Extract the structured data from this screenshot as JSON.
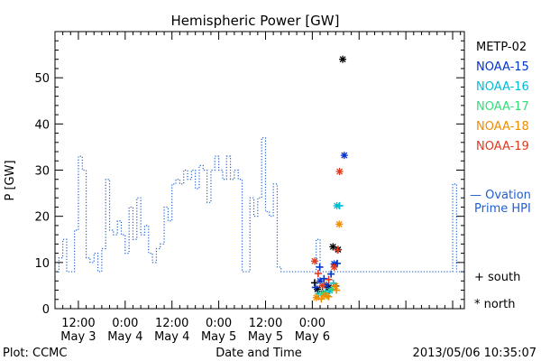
{
  "chart_data": {
    "type": "line",
    "title": "Hemispheric Power [GW]",
    "ylabel": "P [GW]",
    "xlabel": "Date and Time",
    "ylim": [
      0,
      60
    ],
    "xlim_hours": [
      6,
      111
    ],
    "y_ticks": [
      0,
      10,
      20,
      30,
      40,
      50
    ],
    "x_ticks": [
      {
        "h": 12,
        "label1": "12:00",
        "label2": "May 3"
      },
      {
        "h": 24,
        "label1": "0:00",
        "label2": "May 4"
      },
      {
        "h": 36,
        "label1": "12:00",
        "label2": "May 4"
      },
      {
        "h": 48,
        "label1": "0:00",
        "label2": "May 5"
      },
      {
        "h": 60,
        "label1": "12:00",
        "label2": "May 5"
      },
      {
        "h": 72,
        "label1": "0:00",
        "label2": "May 6"
      }
    ],
    "footer_left": "Plot: CCMC",
    "footer_right": "2013/05/06 10:35:07",
    "ovation": {
      "name": "Ovation Prime HPI",
      "label_line1": "— Ovation",
      "label_line2": "Prime HPI",
      "color": "#1f5fcf",
      "steps": [
        [
          6,
          8
        ],
        [
          7,
          11
        ],
        [
          8,
          15
        ],
        [
          9,
          8
        ],
        [
          11,
          17
        ],
        [
          12,
          33
        ],
        [
          13,
          30
        ],
        [
          14,
          11
        ],
        [
          15,
          10
        ],
        [
          16,
          12
        ],
        [
          17,
          8
        ],
        [
          18,
          13
        ],
        [
          19,
          28
        ],
        [
          20,
          17
        ],
        [
          21,
          16
        ],
        [
          22,
          19
        ],
        [
          23,
          16
        ],
        [
          24,
          12
        ],
        [
          25,
          22
        ],
        [
          26,
          15
        ],
        [
          27,
          24
        ],
        [
          28,
          16
        ],
        [
          29,
          18
        ],
        [
          30,
          12
        ],
        [
          31,
          10
        ],
        [
          32,
          13
        ],
        [
          33,
          14
        ],
        [
          34,
          22
        ],
        [
          35,
          19
        ],
        [
          36,
          27
        ],
        [
          37,
          28
        ],
        [
          38,
          27
        ],
        [
          39,
          30
        ],
        [
          40,
          28
        ],
        [
          41,
          30
        ],
        [
          42,
          26
        ],
        [
          43,
          31
        ],
        [
          44,
          30
        ],
        [
          45,
          23
        ],
        [
          46,
          30
        ],
        [
          47,
          33
        ],
        [
          48,
          30
        ],
        [
          49,
          28
        ],
        [
          50,
          33
        ],
        [
          51,
          28
        ],
        [
          52,
          30
        ],
        [
          53,
          28
        ],
        [
          54,
          8
        ],
        [
          56,
          24
        ],
        [
          57,
          20
        ],
        [
          58,
          24
        ],
        [
          59,
          37
        ],
        [
          60,
          21
        ],
        [
          61,
          20
        ],
        [
          62,
          27
        ],
        [
          63,
          9
        ],
        [
          64,
          8
        ],
        [
          72,
          8
        ],
        [
          73,
          15
        ],
        [
          74,
          8
        ],
        [
          108,
          27
        ],
        [
          109,
          8
        ],
        [
          111,
          8
        ]
      ]
    },
    "satellites": [
      {
        "name": "METP-02",
        "color": "#000000",
        "north": [
          [
            73.3,
            4.2
          ],
          [
            76.2,
            4.6
          ],
          [
            77.3,
            13.4
          ],
          [
            78.6,
            12.8
          ],
          [
            79.8,
            54
          ]
        ],
        "south": [
          [
            72.6,
            5.6
          ],
          [
            74.6,
            3.7
          ],
          [
            76.4,
            4.1
          ],
          [
            78.0,
            4.9
          ]
        ]
      },
      {
        "name": "NOAA-15",
        "color": "#0033cc",
        "north": [
          [
            74.0,
            6.0
          ],
          [
            75.6,
            5.1
          ],
          [
            77.6,
            9.7
          ],
          [
            80.2,
            33.2
          ]
        ],
        "south": [
          [
            72.8,
            4.6
          ],
          [
            73.9,
            9.0
          ],
          [
            75.0,
            6.5
          ],
          [
            76.8,
            7.5
          ],
          [
            78.4,
            9.8
          ]
        ]
      },
      {
        "name": "NOAA-16",
        "color": "#00bcd4",
        "north": [
          [
            76.5,
            3.9
          ],
          [
            78.3,
            22.3
          ]
        ],
        "south": [
          [
            73.6,
            3.2
          ],
          [
            75.4,
            3.5
          ],
          [
            77.4,
            5.5
          ],
          [
            79.0,
            22.3
          ]
        ]
      },
      {
        "name": "NOAA-17",
        "color": "#33dd77",
        "north": [
          [
            74.6,
            3.3
          ]
        ],
        "south": [
          [
            75.8,
            2.8
          ],
          [
            77.0,
            4.2
          ]
        ]
      },
      {
        "name": "NOAA-18",
        "color": "#f08c00",
        "north": [
          [
            73.0,
            2.4
          ],
          [
            75.2,
            2.8
          ],
          [
            77.9,
            4.9
          ],
          [
            78.9,
            18.3
          ]
        ],
        "south": [
          [
            74.3,
            2.1
          ],
          [
            76.2,
            2.6
          ],
          [
            78.2,
            4.0
          ]
        ]
      },
      {
        "name": "NOAA-19",
        "color": "#e03a1e",
        "north": [
          [
            72.6,
            10.3
          ],
          [
            74.6,
            5.0
          ],
          [
            77.6,
            9.0
          ],
          [
            79.0,
            29.7
          ]
        ],
        "south": [
          [
            73.5,
            7.6
          ],
          [
            76.2,
            6.3
          ],
          [
            78.5,
            12.7
          ]
        ]
      }
    ],
    "marker_legend": [
      {
        "symbol": "+",
        "label": "south"
      },
      {
        "symbol": "*",
        "label": "north"
      }
    ]
  }
}
